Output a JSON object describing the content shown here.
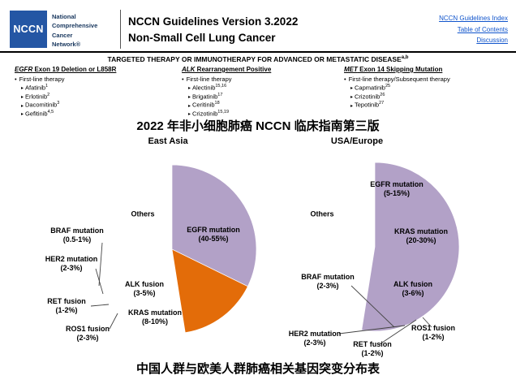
{
  "header": {
    "logo_text": "NCCN",
    "org_lines": [
      "National",
      "Comprehensive",
      "Cancer",
      "Network®"
    ],
    "title_line1": "NCCN Guidelines Version 3.2022",
    "title_line2": "Non-Small Cell Lung Cancer",
    "links": [
      {
        "label": "NCCN Guidelines Index"
      },
      {
        "label": "Table of Contents"
      },
      {
        "label": "Discussion"
      }
    ]
  },
  "banner": {
    "text": "TARGETED THERAPY OR IMMUNOTHERAPY FOR ADVANCED OR METASTATIC DISEASE",
    "superscript": "a,b"
  },
  "columns": [
    {
      "heading_gene": "EGFR",
      "heading_rest": " Exon 19 Deletion or L858R",
      "subheading": "First-line therapy",
      "items": [
        {
          "name": "Afatinib",
          "sup": "1"
        },
        {
          "name": "Erlotinib",
          "sup": "2"
        },
        {
          "name": "Dacomitinib",
          "sup": "3"
        },
        {
          "name": "Gefitinib",
          "sup": "4,5"
        }
      ]
    },
    {
      "heading_gene": "ALK",
      "heading_rest": " Rearrangement Positive",
      "subheading": "First-line therapy",
      "items": [
        {
          "name": "Alectinib",
          "sup": "15,16"
        },
        {
          "name": "Brigatinib",
          "sup": "17"
        },
        {
          "name": "Ceritinib",
          "sup": "18"
        },
        {
          "name": "Crizotinib",
          "sup": "15,19"
        }
      ]
    },
    {
      "heading_gene": "MET",
      "heading_rest": " Exon 14 Skipping Mutation",
      "subheading": "First-line therapy/Subsequent therapy",
      "items": [
        {
          "name": "Capmatinib",
          "sup": "25"
        },
        {
          "name": "Crizotinib",
          "sup": "26"
        },
        {
          "name": "Tepotinib",
          "sup": "27"
        }
      ]
    }
  ],
  "captions": {
    "top": "2022 年非小细胞肺癌 NCCN 临床指南第三版",
    "bottom": "中国人群与欧美人群肺癌相关基因突变分布表"
  },
  "chart_data": [
    {
      "type": "pie",
      "title": "East Asia",
      "legend_position": "inside/outside callouts",
      "slices": [
        {
          "name": "EGFR mutation",
          "pct": "(40-55%)",
          "value": 47.5,
          "color": "#e36c09"
        },
        {
          "name": "KRAS mutation",
          "pct": "(8-10%)",
          "value": 9,
          "color": "#c00000"
        },
        {
          "name": "ALK fusion",
          "pct": "(3-5%)",
          "value": 4,
          "color": "#ffc000"
        },
        {
          "name": "ROS1 fusion",
          "pct": "(2-3%)",
          "value": 2.5,
          "color": "#4ea72e"
        },
        {
          "name": "RET fusion",
          "pct": "(1-2%)",
          "value": 1.5,
          "color": "#2e75b6"
        },
        {
          "name": "HER2 mutation",
          "pct": "(2-3%)",
          "value": 2.5,
          "color": "#ff0000"
        },
        {
          "name": "BRAF mutation",
          "pct": "(0.5-1%)",
          "value": 0.75,
          "color": "#000000"
        },
        {
          "name": "Others",
          "pct": "",
          "value": 32.25,
          "color": "#b2a1c7"
        }
      ]
    },
    {
      "type": "pie",
      "title": "USA/Europe",
      "legend_position": "inside/outside callouts",
      "slices": [
        {
          "name": "EGFR mutation",
          "pct": "(5-15%)",
          "value": 10,
          "color": "#4bacc6"
        },
        {
          "name": "KRAS mutation",
          "pct": "(20-30%)",
          "value": 25,
          "color": "#e36c09"
        },
        {
          "name": "ALK fusion",
          "pct": "(3-6%)",
          "value": 4.5,
          "color": "#ffc000"
        },
        {
          "name": "ROS1 fusion",
          "pct": "(1-2%)",
          "value": 1.5,
          "color": "#4ea72e"
        },
        {
          "name": "RET fusion",
          "pct": "(1-2%)",
          "value": 1.5,
          "color": "#000000"
        },
        {
          "name": "HER2 mutation",
          "pct": "(2-3%)",
          "value": 2.5,
          "color": "#ff0000"
        },
        {
          "name": "BRAF mutation",
          "pct": "(2-3%)",
          "value": 2.5,
          "color": "#2e75b6"
        },
        {
          "name": "Others",
          "pct": "",
          "value": 52.5,
          "color": "#b2a1c7"
        }
      ]
    }
  ]
}
